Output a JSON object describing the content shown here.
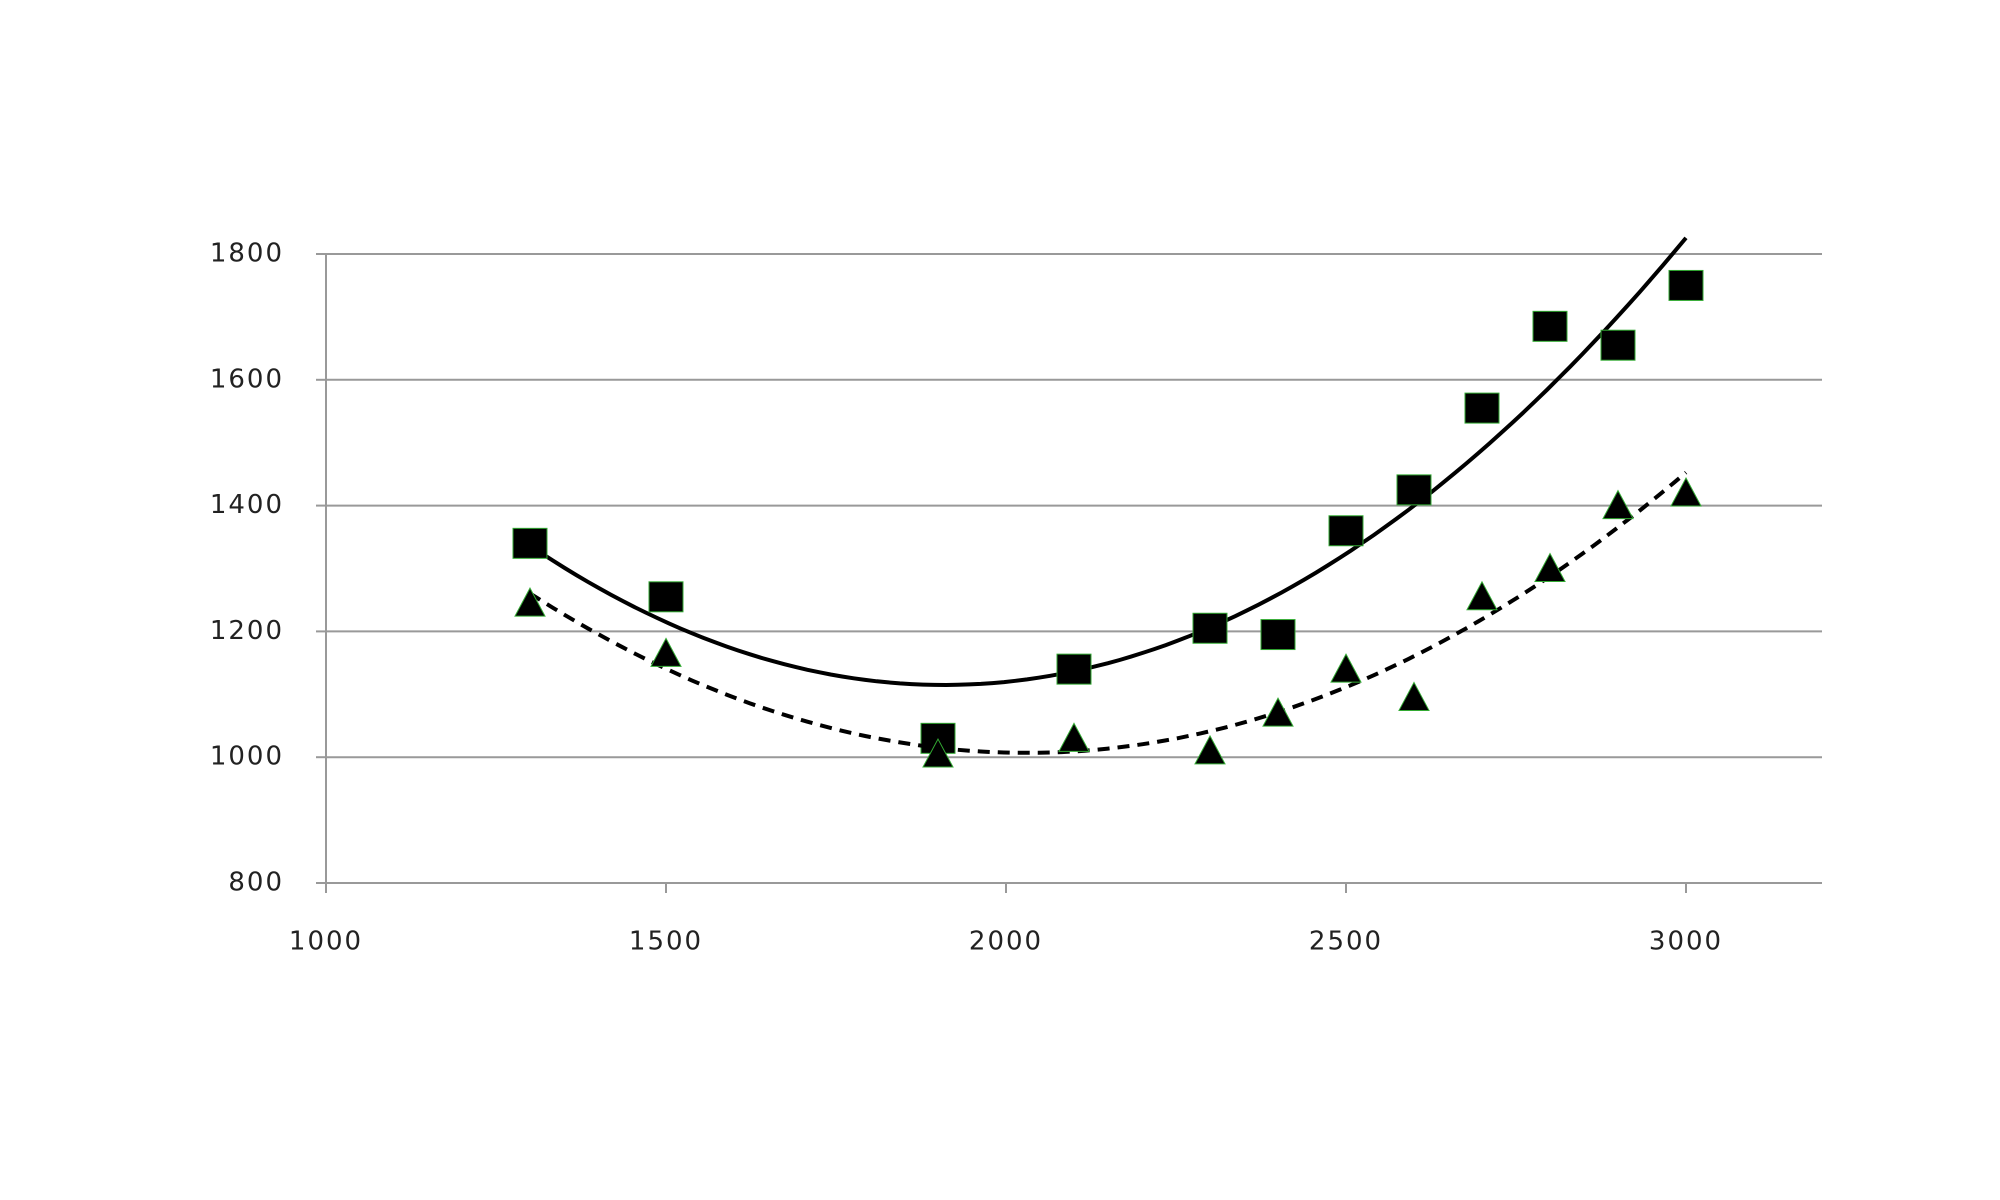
{
  "chart_data": {
    "type": "scatter",
    "xlim": [
      1000,
      3200
    ],
    "xticks": [
      1000,
      1500,
      2000,
      2500,
      3000
    ],
    "ylim": [
      800,
      1800
    ],
    "yticks": [
      800,
      1000,
      1200,
      1400,
      1600,
      1800
    ],
    "grid": true,
    "series": [
      {
        "color": "#000000",
        "marker": "square",
        "trendline": "solid",
        "x": [
          1300,
          1500,
          1900,
          2100,
          2300,
          2400,
          2500,
          2600,
          2700,
          2800,
          2900,
          3000
        ],
        "values": [
          1340,
          1255,
          1030,
          1140,
          1205,
          1195,
          1360,
          1425,
          1555,
          1685,
          1655,
          1750
        ]
      },
      {
        "color": "#000000",
        "marker": "triangle",
        "trendline": "dashed",
        "x": [
          1300,
          1500,
          1900,
          2100,
          2300,
          2400,
          2500,
          2600,
          2700,
          2800,
          2900,
          3000
        ],
        "values": [
          1245,
          1165,
          1005,
          1030,
          1010,
          1070,
          1140,
          1095,
          1255,
          1300,
          1400,
          1420
        ]
      }
    ]
  }
}
